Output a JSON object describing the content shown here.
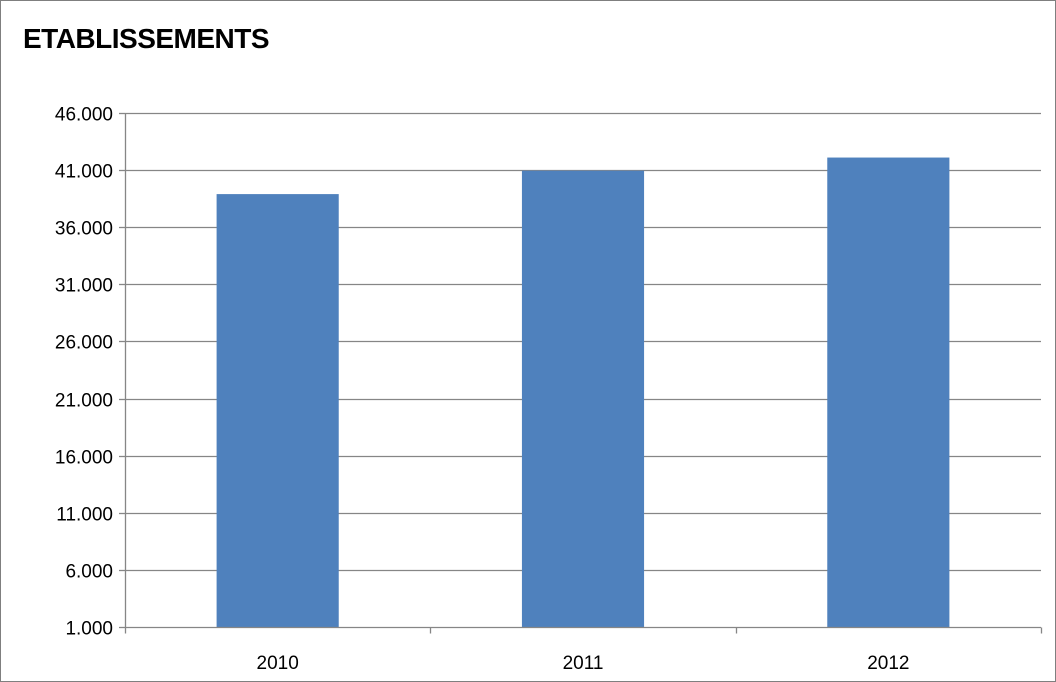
{
  "chart_data": {
    "type": "bar",
    "title": "ETABLISSEMENTS",
    "xlabel": "",
    "ylabel": "",
    "categories": [
      "2010",
      "2011",
      "2012"
    ],
    "values": [
      38900,
      40950,
      42100
    ],
    "ylim": [
      1000,
      46000
    ],
    "yticks": [
      "1.000",
      "6.000",
      "11.000",
      "16.000",
      "21.000",
      "26.000",
      "31.000",
      "36.000",
      "41.000",
      "46.000"
    ],
    "ytick_values": [
      1000,
      6000,
      11000,
      16000,
      21000,
      26000,
      31000,
      36000,
      41000,
      46000
    ],
    "grid": true,
    "legend": "none",
    "bar_color": "#4f81bd",
    "grid_color": "#868686",
    "axis_color": "#868686"
  }
}
